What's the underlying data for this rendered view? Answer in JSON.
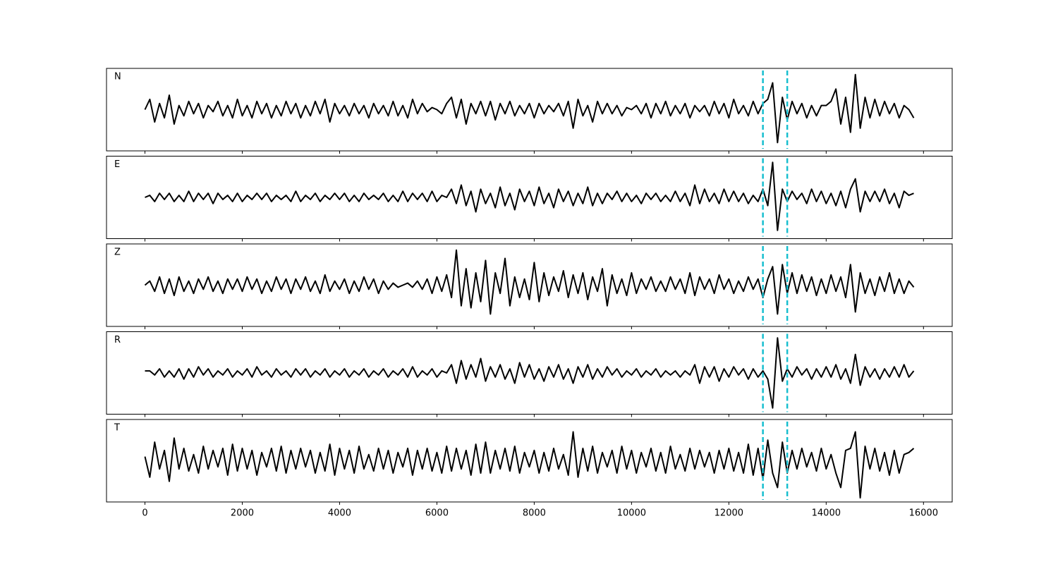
{
  "chart_data": {
    "type": "line",
    "layout": "stacked",
    "x": [
      0,
      100,
      200,
      300,
      400,
      500,
      600,
      700,
      800,
      900,
      1000,
      1100,
      1200,
      1300,
      1400,
      1500,
      1600,
      1700,
      1800,
      1900,
      2000,
      2100,
      2200,
      2300,
      2400,
      2500,
      2600,
      2700,
      2800,
      2900,
      3000,
      3100,
      3200,
      3300,
      3400,
      3500,
      3600,
      3700,
      3800,
      3900,
      4000,
      4100,
      4200,
      4300,
      4400,
      4500,
      4600,
      4700,
      4800,
      4900,
      5000,
      5100,
      5200,
      5300,
      5400,
      5500,
      5600,
      5700,
      5800,
      5900,
      6000,
      6100,
      6200,
      6300,
      6400,
      6500,
      6600,
      6700,
      6800,
      6900,
      7000,
      7100,
      7200,
      7300,
      7400,
      7500,
      7600,
      7700,
      7800,
      7900,
      8000,
      8100,
      8200,
      8300,
      8400,
      8500,
      8600,
      8700,
      8800,
      8900,
      9000,
      9100,
      9200,
      9300,
      9400,
      9500,
      9600,
      9700,
      9800,
      9900,
      10000,
      10100,
      10200,
      10300,
      10400,
      10500,
      10600,
      10700,
      10800,
      10900,
      11000,
      11100,
      11200,
      11300,
      11400,
      11500,
      11600,
      11700,
      11800,
      11900,
      12000,
      12100,
      12200,
      12300,
      12400,
      12500,
      12600,
      12700,
      12800,
      12900,
      13000,
      13100,
      13200,
      13300,
      13400,
      13500,
      13600,
      13700,
      13800,
      13900,
      14000,
      14100,
      14200,
      14300,
      14400,
      14500,
      14600,
      14700,
      14800,
      14900,
      15000,
      15100,
      15200,
      15300,
      15400,
      15500,
      15600,
      15700,
      15800
    ],
    "xlim": [
      -790,
      16590
    ],
    "xticks": [
      0,
      2000,
      4000,
      6000,
      8000,
      10000,
      12000,
      14000,
      16000
    ],
    "ylim": [
      -1,
      1
    ],
    "vlines": [
      12700,
      13200
    ],
    "vline_color": "#17becf",
    "series": [
      {
        "name": "N",
        "color": "#000000",
        "values": [
          0.0,
          0.25,
          -0.3,
          0.15,
          -0.2,
          0.35,
          -0.35,
          0.1,
          -0.15,
          0.2,
          -0.1,
          0.15,
          -0.2,
          0.1,
          -0.05,
          0.2,
          -0.15,
          0.1,
          -0.2,
          0.25,
          -0.15,
          0.1,
          -0.2,
          0.2,
          -0.1,
          0.15,
          -0.2,
          0.1,
          -0.15,
          0.2,
          -0.1,
          0.15,
          -0.2,
          0.1,
          -0.15,
          0.2,
          -0.1,
          0.25,
          -0.3,
          0.15,
          -0.1,
          0.1,
          -0.15,
          0.15,
          -0.1,
          0.1,
          -0.2,
          0.15,
          -0.1,
          0.1,
          -0.15,
          0.2,
          -0.15,
          0.1,
          -0.2,
          0.25,
          -0.1,
          0.15,
          -0.05,
          0.05,
          0.0,
          -0.1,
          0.15,
          0.3,
          -0.2,
          0.25,
          -0.35,
          0.15,
          -0.1,
          0.2,
          -0.15,
          0.2,
          -0.25,
          0.15,
          -0.1,
          0.2,
          -0.15,
          0.1,
          -0.1,
          0.15,
          -0.2,
          0.15,
          -0.1,
          0.1,
          -0.05,
          0.15,
          -0.15,
          0.2,
          -0.45,
          0.25,
          -0.15,
          0.1,
          -0.3,
          0.2,
          -0.1,
          0.15,
          -0.1,
          0.1,
          -0.15,
          0.05,
          0.0,
          0.1,
          -0.1,
          0.15,
          -0.2,
          0.15,
          -0.1,
          0.2,
          -0.15,
          0.1,
          -0.1,
          0.15,
          -0.2,
          0.1,
          -0.05,
          0.1,
          -0.15,
          0.2,
          -0.1,
          0.15,
          -0.2,
          0.25,
          -0.1,
          0.1,
          -0.15,
          0.2,
          -0.1,
          0.15,
          0.25,
          0.65,
          -0.8,
          0.3,
          -0.25,
          0.2,
          -0.1,
          0.15,
          -0.2,
          0.1,
          -0.15,
          0.1,
          0.1,
          0.2,
          0.5,
          -0.35,
          0.3,
          -0.55,
          0.85,
          -0.45,
          0.3,
          -0.2,
          0.25,
          -0.15,
          0.2,
          -0.1,
          0.15,
          -0.2,
          0.1,
          0.0,
          -0.2
        ]
      },
      {
        "name": "E",
        "color": "#000000",
        "values": [
          0.0,
          0.05,
          -0.1,
          0.1,
          -0.05,
          0.1,
          -0.1,
          0.05,
          -0.1,
          0.15,
          -0.1,
          0.1,
          -0.05,
          0.1,
          -0.15,
          0.1,
          -0.05,
          0.05,
          -0.1,
          0.1,
          -0.1,
          0.05,
          -0.05,
          0.1,
          -0.05,
          0.1,
          -0.1,
          0.05,
          -0.05,
          0.05,
          -0.1,
          0.15,
          -0.1,
          0.05,
          -0.05,
          0.1,
          -0.1,
          0.05,
          -0.05,
          0.1,
          -0.05,
          0.1,
          -0.1,
          0.05,
          -0.1,
          0.1,
          -0.05,
          0.05,
          -0.05,
          0.1,
          -0.1,
          0.05,
          -0.1,
          0.15,
          -0.1,
          0.1,
          -0.05,
          0.1,
          -0.1,
          0.15,
          -0.1,
          0.05,
          0.0,
          0.2,
          -0.15,
          0.3,
          -0.2,
          0.15,
          -0.35,
          0.2,
          -0.15,
          0.1,
          -0.25,
          0.25,
          -0.2,
          0.1,
          -0.3,
          0.2,
          -0.1,
          0.15,
          -0.2,
          0.25,
          -0.15,
          0.1,
          -0.25,
          0.2,
          -0.1,
          0.15,
          -0.2,
          0.1,
          -0.15,
          0.25,
          -0.2,
          0.1,
          -0.15,
          0.1,
          -0.05,
          0.15,
          -0.1,
          0.1,
          -0.1,
          0.05,
          -0.15,
          0.1,
          -0.05,
          0.1,
          -0.1,
          0.05,
          -0.1,
          0.15,
          -0.1,
          0.1,
          -0.2,
          0.3,
          -0.15,
          0.2,
          -0.1,
          0.1,
          -0.15,
          0.2,
          -0.1,
          0.15,
          -0.1,
          0.1,
          -0.15,
          0.05,
          -0.1,
          0.2,
          -0.2,
          0.85,
          -0.8,
          0.2,
          -0.1,
          0.15,
          -0.05,
          0.1,
          -0.15,
          0.2,
          -0.1,
          0.15,
          -0.15,
          0.1,
          -0.2,
          0.15,
          -0.25,
          0.2,
          0.45,
          -0.35,
          0.15,
          -0.1,
          0.15,
          -0.1,
          0.2,
          -0.15,
          0.1,
          -0.25,
          0.15,
          0.05,
          0.1
        ]
      },
      {
        "name": "Z",
        "color": "#000000",
        "values": [
          0.0,
          0.1,
          -0.15,
          0.2,
          -0.2,
          0.15,
          -0.25,
          0.2,
          -0.15,
          0.1,
          -0.2,
          0.15,
          -0.1,
          0.2,
          -0.15,
          0.1,
          -0.2,
          0.15,
          -0.1,
          0.15,
          -0.15,
          0.2,
          -0.1,
          0.15,
          -0.2,
          0.1,
          -0.15,
          0.2,
          -0.1,
          0.15,
          -0.2,
          0.15,
          -0.1,
          0.2,
          -0.15,
          0.1,
          -0.2,
          0.25,
          -0.15,
          0.1,
          -0.1,
          0.15,
          -0.2,
          0.1,
          -0.15,
          0.2,
          -0.1,
          0.15,
          -0.2,
          0.1,
          -0.1,
          0.05,
          -0.05,
          0.0,
          0.05,
          -0.05,
          0.1,
          -0.1,
          0.15,
          -0.2,
          0.2,
          -0.15,
          0.25,
          -0.3,
          0.85,
          -0.5,
          0.4,
          -0.55,
          0.3,
          -0.4,
          0.6,
          -0.7,
          0.3,
          -0.2,
          0.65,
          -0.5,
          0.2,
          -0.3,
          0.15,
          -0.35,
          0.55,
          -0.4,
          0.3,
          -0.25,
          0.2,
          -0.15,
          0.35,
          -0.3,
          0.25,
          -0.2,
          0.3,
          -0.35,
          0.2,
          -0.15,
          0.4,
          -0.5,
          0.25,
          -0.2,
          0.15,
          -0.25,
          0.3,
          -0.2,
          0.15,
          -0.1,
          0.2,
          -0.15,
          0.1,
          -0.15,
          0.2,
          -0.1,
          0.15,
          -0.2,
          0.3,
          -0.25,
          0.2,
          -0.1,
          0.15,
          -0.2,
          0.25,
          -0.1,
          0.15,
          -0.2,
          0.1,
          -0.15,
          0.2,
          -0.1,
          0.15,
          -0.3,
          0.15,
          0.45,
          -0.7,
          0.5,
          -0.2,
          0.3,
          -0.2,
          0.25,
          -0.15,
          0.2,
          -0.25,
          0.15,
          -0.2,
          0.25,
          -0.15,
          0.2,
          -0.3,
          0.5,
          -0.65,
          0.3,
          -0.2,
          0.15,
          -0.25,
          0.2,
          -0.15,
          0.3,
          -0.2,
          0.15,
          -0.2,
          0.1,
          -0.05
        ]
      },
      {
        "name": "R",
        "color": "#000000",
        "values": [
          0.05,
          0.05,
          -0.05,
          0.1,
          -0.1,
          0.05,
          -0.1,
          0.1,
          -0.15,
          0.1,
          -0.1,
          0.15,
          -0.05,
          0.1,
          -0.1,
          0.05,
          -0.05,
          0.1,
          -0.1,
          0.05,
          -0.05,
          0.1,
          -0.1,
          0.15,
          -0.05,
          0.05,
          -0.1,
          0.1,
          -0.05,
          0.05,
          -0.1,
          0.1,
          -0.05,
          0.1,
          -0.1,
          0.05,
          -0.05,
          0.1,
          -0.1,
          0.05,
          -0.05,
          0.1,
          -0.1,
          0.05,
          -0.05,
          0.1,
          -0.1,
          0.05,
          -0.05,
          0.1,
          -0.1,
          0.05,
          -0.05,
          0.1,
          -0.1,
          0.15,
          -0.1,
          0.05,
          -0.05,
          0.1,
          -0.1,
          0.05,
          0.0,
          0.2,
          -0.25,
          0.3,
          -0.15,
          0.2,
          -0.1,
          0.35,
          -0.2,
          0.15,
          -0.1,
          0.2,
          -0.15,
          0.1,
          -0.25,
          0.25,
          -0.1,
          0.2,
          -0.15,
          0.1,
          -0.2,
          0.15,
          -0.1,
          0.2,
          -0.15,
          0.1,
          -0.25,
          0.15,
          -0.1,
          0.2,
          -0.15,
          0.1,
          -0.1,
          0.15,
          -0.05,
          0.1,
          -0.1,
          0.05,
          -0.05,
          0.1,
          -0.1,
          0.05,
          -0.05,
          0.1,
          -0.1,
          0.05,
          -0.05,
          0.05,
          -0.1,
          0.05,
          -0.05,
          0.2,
          -0.25,
          0.15,
          -0.1,
          0.15,
          -0.2,
          0.1,
          -0.1,
          0.15,
          -0.05,
          0.1,
          -0.15,
          0.1,
          -0.1,
          0.05,
          -0.15,
          -0.85,
          0.85,
          -0.2,
          0.1,
          -0.1,
          0.15,
          -0.05,
          0.1,
          -0.15,
          0.1,
          -0.1,
          0.15,
          -0.1,
          0.2,
          -0.15,
          0.1,
          -0.25,
          0.45,
          -0.3,
          0.15,
          -0.1,
          0.1,
          -0.15,
          0.1,
          -0.1,
          0.15,
          -0.1,
          0.2,
          -0.1,
          0.05
        ]
      },
      {
        "name": "T",
        "color": "#000000",
        "values": [
          0.1,
          -0.4,
          0.45,
          -0.2,
          0.25,
          -0.5,
          0.55,
          -0.2,
          0.3,
          -0.25,
          0.15,
          -0.3,
          0.35,
          -0.2,
          0.25,
          -0.15,
          0.3,
          -0.35,
          0.4,
          -0.25,
          0.3,
          -0.2,
          0.25,
          -0.35,
          0.2,
          -0.15,
          0.3,
          -0.25,
          0.35,
          -0.3,
          0.25,
          -0.2,
          0.3,
          -0.15,
          0.25,
          -0.3,
          0.2,
          -0.25,
          0.4,
          -0.35,
          0.3,
          -0.2,
          0.25,
          -0.3,
          0.35,
          -0.2,
          0.15,
          -0.25,
          0.3,
          -0.2,
          0.25,
          -0.3,
          0.2,
          -0.15,
          0.3,
          -0.35,
          0.25,
          -0.2,
          0.3,
          -0.25,
          0.2,
          -0.3,
          0.35,
          -0.25,
          0.3,
          -0.2,
          0.25,
          -0.35,
          0.4,
          -0.3,
          0.45,
          -0.3,
          0.25,
          -0.2,
          0.3,
          -0.25,
          0.35,
          -0.3,
          0.2,
          -0.15,
          0.25,
          -0.3,
          0.2,
          -0.25,
          0.3,
          -0.2,
          0.15,
          -0.35,
          0.7,
          -0.4,
          0.3,
          -0.25,
          0.35,
          -0.3,
          0.2,
          -0.15,
          0.25,
          -0.3,
          0.35,
          -0.2,
          0.25,
          -0.3,
          0.2,
          -0.15,
          0.3,
          -0.25,
          0.2,
          -0.3,
          0.35,
          -0.2,
          0.15,
          -0.25,
          0.3,
          -0.2,
          0.25,
          -0.15,
          0.2,
          -0.3,
          0.25,
          -0.2,
          0.3,
          -0.25,
          0.2,
          -0.3,
          0.4,
          -0.35,
          0.3,
          -0.45,
          0.5,
          -0.3,
          -0.65,
          0.45,
          -0.3,
          0.25,
          -0.2,
          0.3,
          -0.15,
          0.2,
          -0.25,
          0.3,
          -0.2,
          0.15,
          -0.3,
          -0.65,
          0.25,
          0.3,
          0.7,
          -0.9,
          0.35,
          -0.2,
          0.3,
          -0.25,
          0.2,
          -0.35,
          0.25,
          -0.3,
          0.15,
          0.2,
          0.3
        ]
      }
    ]
  }
}
